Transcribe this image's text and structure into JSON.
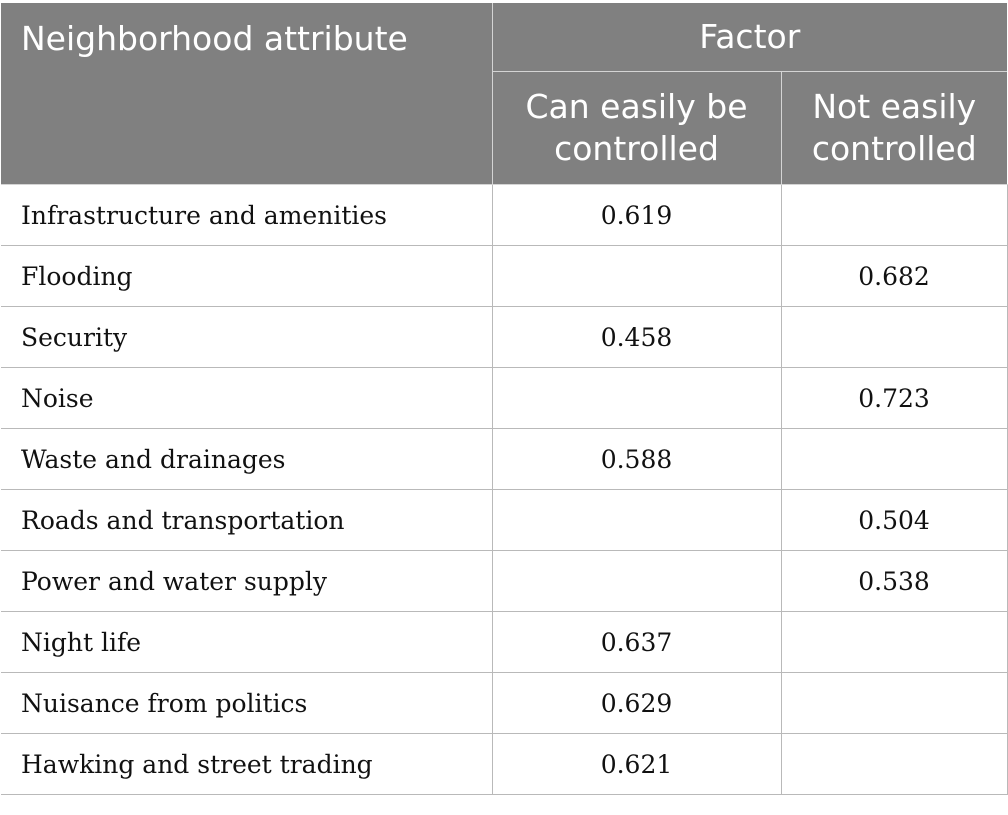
{
  "table": {
    "header": {
      "attribute": "Neighborhood attribute",
      "factor": "Factor",
      "col1": "Can easily be controlled",
      "col2": "Not easily controlled"
    },
    "rows": [
      {
        "name": "Infrastructure and amenities",
        "c1": "0.619",
        "c2": ""
      },
      {
        "name": "Flooding",
        "c1": "",
        "c2": "0.682"
      },
      {
        "name": "Security",
        "c1": "0.458",
        "c2": ""
      },
      {
        "name": "Noise",
        "c1": "",
        "c2": "0.723"
      },
      {
        "name": "Waste and drainages",
        "c1": "0.588",
        "c2": ""
      },
      {
        "name": "Roads and transportation",
        "c1": "",
        "c2": "0.504"
      },
      {
        "name": "Power and water supply",
        "c1": "",
        "c2": "0.538"
      },
      {
        "name": "Night life",
        "c1": "0.637",
        "c2": ""
      },
      {
        "name": "Nuisance from politics",
        "c1": "0.629",
        "c2": ""
      },
      {
        "name": "Hawking and street trading",
        "c1": "0.621",
        "c2": ""
      }
    ]
  }
}
